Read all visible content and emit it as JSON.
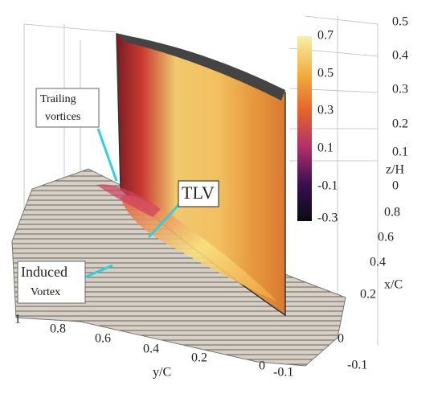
{
  "colorbar": {
    "ticks": [
      0.7,
      0.5,
      0.3,
      0.1,
      -0.1,
      -0.3
    ]
  },
  "axes": {
    "z": {
      "label": "z/H",
      "ticks": [
        0.5,
        0.4,
        0.3,
        0.2,
        0.1,
        0
      ]
    },
    "x": {
      "label": "x/C",
      "ticks": [
        0.8,
        0.6,
        0.4,
        0.2,
        0,
        -0.1
      ]
    },
    "y": {
      "label": "y/C",
      "ticks": [
        1,
        0.8,
        0.6,
        0.4,
        0.2,
        0,
        -0.1
      ]
    }
  },
  "annotations": {
    "trailing": [
      "Trailing",
      "vortices"
    ],
    "tlv": "TLV",
    "induced": [
      "Induced",
      "Vortex"
    ]
  }
}
